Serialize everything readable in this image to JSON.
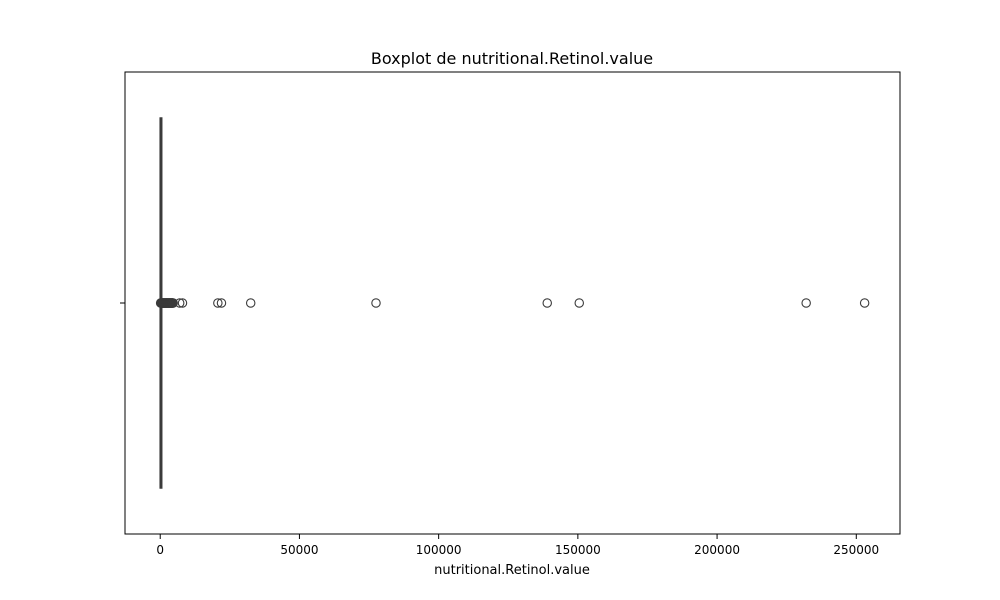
{
  "chart_data": {
    "type": "boxplot",
    "title": "Boxplot de nutritional.Retinol.value",
    "xlabel": "nutritional.Retinol.value",
    "ylabel": "",
    "xlim": [
      -12650,
      265700
    ],
    "xticks": [
      0,
      50000,
      100000,
      150000,
      200000,
      250000
    ],
    "xtick_labels": [
      "0",
      "50000",
      "100000",
      "150000",
      "200000",
      "250000"
    ],
    "orientation": "horizontal",
    "grid": false,
    "box": {
      "whisker_low": 0,
      "q1": 0,
      "median": 0,
      "q3": 50,
      "whisker_high": 130
    },
    "outliers_dense_range": [
      150,
      4700
    ],
    "outliers": [
      7000,
      8000,
      20700,
      22000,
      32500,
      77500,
      139000,
      150500,
      232000,
      253000
    ],
    "colors": {
      "line": "#3b3b3b",
      "box_fill": "#3b3b3b",
      "axis": "#000000"
    }
  }
}
